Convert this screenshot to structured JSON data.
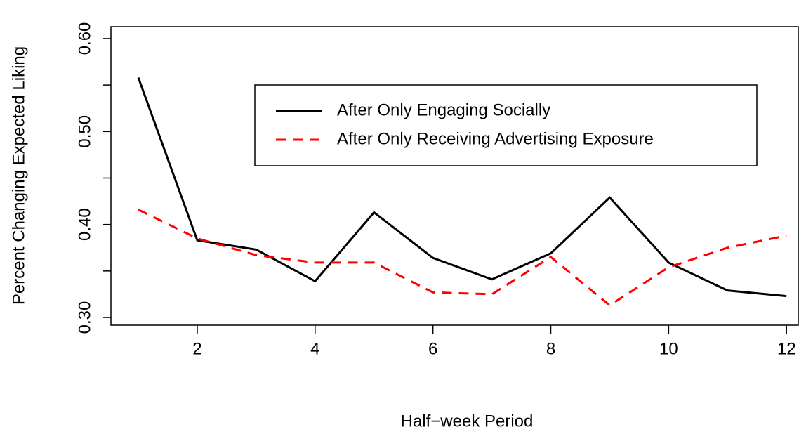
{
  "chart_data": {
    "type": "line",
    "xlabel": "Half−week Period",
    "ylabel": "Percent Changing Expected Liking",
    "x": [
      1,
      2,
      3,
      4,
      5,
      6,
      7,
      8,
      9,
      10,
      11,
      12
    ],
    "series": [
      {
        "name": "After Only Engaging Socially",
        "color": "#000000",
        "dash": "solid",
        "values": [
          0.558,
          0.383,
          0.373,
          0.339,
          0.413,
          0.364,
          0.341,
          0.369,
          0.429,
          0.359,
          0.329,
          0.323
        ]
      },
      {
        "name": "After Only Receiving Advertising Exposure",
        "color": "#ff0000",
        "dash": "dashed",
        "values": [
          0.416,
          0.385,
          0.367,
          0.359,
          0.359,
          0.327,
          0.325,
          0.365,
          0.313,
          0.354,
          0.375,
          0.388
        ]
      }
    ],
    "xlim": [
      0.535,
      12.2
    ],
    "xticks": [
      2,
      4,
      6,
      8,
      10,
      12
    ],
    "ylim": [
      0.2917,
      0.6128
    ],
    "yticks": [
      {
        "value": 0.3,
        "label": "0.30"
      },
      {
        "value": 0.4,
        "label": "0.40"
      },
      {
        "value": 0.5,
        "label": "0.50"
      },
      {
        "value": 0.6,
        "label": "0.60"
      }
    ],
    "yminor_ticks": [
      0.35,
      0.45,
      0.55
    ],
    "legend": "top-right"
  }
}
